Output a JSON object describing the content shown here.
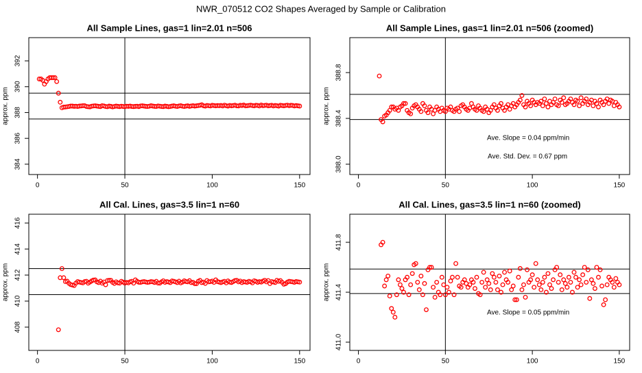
{
  "title": "NWR_070512  CO2 Shapes Averaged by Sample or Calibration",
  "chart_data": [
    {
      "type": "scatter",
      "title": "All Sample Lines, gas=1 lin=2.01 n=506",
      "ylabel": "approx. ppm",
      "color": "#ff0000",
      "xlim": [
        -4.96,
        155.96
      ],
      "xticks": [
        0,
        50,
        100,
        150
      ],
      "ylim": [
        383.2,
        393.8
      ],
      "yticks": [
        384,
        386,
        388,
        390,
        392
      ],
      "hlines": [
        389.5,
        387.5
      ],
      "vline": 50,
      "annotations": [],
      "x": [
        1,
        2,
        3,
        4,
        5,
        6,
        7,
        8,
        9,
        10,
        11,
        12,
        13,
        14,
        15,
        16,
        17,
        18,
        19,
        20,
        21,
        22,
        23,
        24,
        25,
        26,
        27,
        28,
        29,
        30,
        31,
        32,
        33,
        34,
        35,
        36,
        37,
        38,
        39,
        40,
        41,
        42,
        43,
        44,
        45,
        46,
        47,
        48,
        49,
        50,
        51,
        52,
        53,
        54,
        55,
        56,
        57,
        58,
        59,
        60,
        61,
        62,
        63,
        64,
        65,
        66,
        67,
        68,
        69,
        70,
        71,
        72,
        73,
        74,
        75,
        76,
        77,
        78,
        79,
        80,
        81,
        82,
        83,
        84,
        85,
        86,
        87,
        88,
        89,
        90,
        91,
        92,
        93,
        94,
        95,
        96,
        97,
        98,
        99,
        100,
        101,
        102,
        103,
        104,
        105,
        106,
        107,
        108,
        109,
        110,
        111,
        112,
        113,
        114,
        115,
        116,
        117,
        118,
        119,
        120,
        121,
        122,
        123,
        124,
        125,
        126,
        127,
        128,
        129,
        130,
        131,
        132,
        133,
        134,
        135,
        136,
        137,
        138,
        139,
        140,
        141,
        142,
        143,
        144,
        145,
        146,
        147,
        148,
        149,
        150
      ],
      "values": [
        390.6,
        390.6,
        390.5,
        390.2,
        390.4,
        390.6,
        390.7,
        390.7,
        390.7,
        390.7,
        390.4,
        389.5,
        388.8,
        388.37,
        388.42,
        388.43,
        388.45,
        388.47,
        388.5,
        388.5,
        388.48,
        388.49,
        388.47,
        388.5,
        388.51,
        388.53,
        388.53,
        388.47,
        388.45,
        388.44,
        388.49,
        388.51,
        388.52,
        388.5,
        388.48,
        388.46,
        388.53,
        388.51,
        388.47,
        388.45,
        388.5,
        388.48,
        388.44,
        388.47,
        388.5,
        388.48,
        388.46,
        388.49,
        388.47,
        388.46,
        388.49,
        388.48,
        388.5,
        388.47,
        388.46,
        388.48,
        388.49,
        388.46,
        388.51,
        388.52,
        388.5,
        388.48,
        388.47,
        388.49,
        388.53,
        388.5,
        388.48,
        388.47,
        388.51,
        388.49,
        388.47,
        388.46,
        388.5,
        388.48,
        388.45,
        388.47,
        388.5,
        388.52,
        388.49,
        388.47,
        388.51,
        388.53,
        388.49,
        388.47,
        388.5,
        388.52,
        388.48,
        388.51,
        388.53,
        388.5,
        388.52,
        388.54,
        388.56,
        388.6,
        388.52,
        388.5,
        388.55,
        388.53,
        388.51,
        388.56,
        388.54,
        388.52,
        388.54,
        388.53,
        388.55,
        388.51,
        388.57,
        388.53,
        388.5,
        388.55,
        388.52,
        388.54,
        388.57,
        388.52,
        388.51,
        388.56,
        388.54,
        388.58,
        388.52,
        388.53,
        388.55,
        388.57,
        388.54,
        388.52,
        388.56,
        388.55,
        388.51,
        388.58,
        388.53,
        388.55,
        388.57,
        388.52,
        388.54,
        388.56,
        388.51,
        388.55,
        388.53,
        388.5,
        388.56,
        388.54,
        388.52,
        388.55,
        388.57,
        388.53,
        388.56,
        388.55,
        388.51,
        388.54,
        388.52,
        388.5
      ]
    },
    {
      "type": "scatter",
      "title": "All Sample Lines, gas=1 lin=2.01 n=506 (zoomed)",
      "ylabel": "approx. ppm",
      "color": "#ff0000",
      "xlim": [
        -4.96,
        155.96
      ],
      "xticks": [
        0,
        50,
        100,
        150
      ],
      "ylim": [
        387.91,
        389.105
      ],
      "yticks": [
        {
          "value": 388,
          "label": "388.0"
        },
        388.4,
        388.8
      ],
      "hlines": [
        388.61,
        388.39
      ],
      "vline": 50,
      "annotations": [
        "Ave. Slope =  0.04  ppm/min",
        "Ave. Std. Dev. =  0.67  ppm"
      ],
      "x": [
        12,
        13,
        14,
        15,
        16,
        17,
        18,
        19,
        20,
        21,
        22,
        23,
        24,
        25,
        26,
        27,
        28,
        29,
        30,
        31,
        32,
        33,
        34,
        35,
        36,
        37,
        38,
        39,
        40,
        41,
        42,
        43,
        44,
        45,
        46,
        47,
        48,
        49,
        50,
        51,
        52,
        53,
        54,
        55,
        56,
        57,
        58,
        59,
        60,
        61,
        62,
        63,
        64,
        65,
        66,
        67,
        68,
        69,
        70,
        71,
        72,
        73,
        74,
        75,
        76,
        77,
        78,
        79,
        80,
        81,
        82,
        83,
        84,
        85,
        86,
        87,
        88,
        89,
        90,
        91,
        92,
        93,
        94,
        95,
        96,
        97,
        98,
        99,
        100,
        101,
        102,
        103,
        104,
        105,
        106,
        107,
        108,
        109,
        110,
        111,
        112,
        113,
        114,
        115,
        116,
        117,
        118,
        119,
        120,
        121,
        122,
        123,
        124,
        125,
        126,
        127,
        128,
        129,
        130,
        131,
        132,
        133,
        134,
        135,
        136,
        137,
        138,
        139,
        140,
        141,
        142,
        143,
        144,
        145,
        146,
        147,
        148,
        149,
        150
      ],
      "values": [
        388.77,
        388.39,
        388.37,
        388.42,
        388.43,
        388.45,
        388.47,
        388.5,
        388.5,
        388.48,
        388.49,
        388.47,
        388.5,
        388.51,
        388.53,
        388.53,
        388.47,
        388.45,
        388.44,
        388.49,
        388.51,
        388.52,
        388.5,
        388.48,
        388.46,
        388.53,
        388.51,
        388.47,
        388.45,
        388.5,
        388.48,
        388.44,
        388.47,
        388.5,
        388.48,
        388.46,
        388.49,
        388.47,
        388.46,
        388.49,
        388.48,
        388.5,
        388.47,
        388.46,
        388.48,
        388.49,
        388.46,
        388.51,
        388.52,
        388.5,
        388.48,
        388.47,
        388.49,
        388.53,
        388.5,
        388.48,
        388.47,
        388.51,
        388.49,
        388.47,
        388.46,
        388.5,
        388.48,
        388.45,
        388.47,
        388.5,
        388.52,
        388.49,
        388.47,
        388.51,
        388.53,
        388.49,
        388.47,
        388.5,
        388.52,
        388.48,
        388.51,
        388.53,
        388.5,
        388.52,
        388.54,
        388.56,
        388.6,
        388.52,
        388.5,
        388.55,
        388.53,
        388.51,
        388.56,
        388.54,
        388.52,
        388.54,
        388.53,
        388.55,
        388.51,
        388.57,
        388.53,
        388.5,
        388.55,
        388.52,
        388.54,
        388.57,
        388.52,
        388.51,
        388.56,
        388.54,
        388.58,
        388.52,
        388.53,
        388.55,
        388.57,
        388.54,
        388.52,
        388.56,
        388.55,
        388.51,
        388.58,
        388.53,
        388.55,
        388.57,
        388.52,
        388.54,
        388.56,
        388.51,
        388.55,
        388.53,
        388.5,
        388.56,
        388.54,
        388.52,
        388.55,
        388.57,
        388.53,
        388.56,
        388.55,
        388.51,
        388.54,
        388.52,
        388.5
      ]
    },
    {
      "type": "scatter",
      "title": "All Cal. Lines, gas=3.5 lin=1 n=60",
      "ylabel": "approx. ppm",
      "color": "#ff0000",
      "xlim": [
        -4.96,
        155.96
      ],
      "xticks": [
        0,
        50,
        100,
        150
      ],
      "ylim": [
        406.21,
        416.68
      ],
      "yticks": [
        408,
        410,
        412,
        414,
        416
      ],
      "hlines": [
        412.5,
        410.5
      ],
      "vline": 50,
      "annotations": [],
      "x": [
        12,
        13,
        14,
        15,
        16,
        17,
        18,
        19,
        20,
        21,
        22,
        23,
        24,
        25,
        26,
        27,
        28,
        29,
        30,
        31,
        32,
        33,
        34,
        35,
        36,
        37,
        38,
        39,
        40,
        41,
        42,
        43,
        44,
        45,
        46,
        47,
        48,
        49,
        50,
        51,
        52,
        53,
        54,
        55,
        56,
        57,
        58,
        59,
        60,
        61,
        62,
        63,
        64,
        65,
        66,
        67,
        68,
        69,
        70,
        71,
        72,
        73,
        74,
        75,
        76,
        77,
        78,
        79,
        80,
        81,
        82,
        83,
        84,
        85,
        86,
        87,
        88,
        89,
        90,
        91,
        92,
        93,
        94,
        95,
        96,
        97,
        98,
        99,
        100,
        101,
        102,
        103,
        104,
        105,
        106,
        107,
        108,
        109,
        110,
        111,
        112,
        113,
        114,
        115,
        116,
        117,
        118,
        119,
        120,
        121,
        122,
        123,
        124,
        125,
        126,
        127,
        128,
        129,
        130,
        131,
        132,
        133,
        134,
        135,
        136,
        137,
        138,
        139,
        140,
        141,
        142,
        143,
        144,
        145,
        146,
        147,
        148,
        149,
        150
      ],
      "values": [
        407.8,
        411.8,
        412.5,
        411.8,
        411.5,
        411.53,
        411.37,
        411.27,
        411.24,
        411.2,
        411.38,
        411.5,
        411.46,
        411.43,
        411.4,
        411.5,
        411.52,
        411.38,
        411.46,
        411.55,
        411.62,
        411.63,
        411.48,
        411.42,
        411.53,
        411.38,
        411.47,
        411.26,
        411.58,
        411.6,
        411.6,
        411.44,
        411.36,
        411.48,
        411.4,
        411.38,
        411.52,
        411.46,
        411.38,
        411.44,
        411.4,
        411.49,
        411.52,
        411.38,
        411.63,
        411.52,
        411.45,
        411.44,
        411.48,
        411.5,
        411.47,
        411.44,
        411.46,
        411.5,
        411.48,
        411.43,
        411.52,
        411.39,
        411.38,
        411.48,
        411.56,
        411.44,
        411.5,
        411.47,
        411.42,
        411.55,
        411.52,
        411.48,
        411.42,
        411.53,
        411.4,
        411.46,
        411.56,
        411.5,
        411.48,
        411.57,
        411.42,
        411.45,
        411.34,
        411.34,
        411.52,
        411.59,
        411.42,
        411.46,
        411.36,
        411.58,
        411.48,
        411.5,
        411.54,
        411.44,
        411.63,
        411.5,
        411.46,
        411.42,
        411.48,
        411.52,
        411.4,
        411.55,
        411.46,
        411.43,
        411.5,
        411.58,
        411.6,
        411.48,
        411.54,
        411.42,
        411.5,
        411.47,
        411.44,
        411.52,
        411.48,
        411.4,
        411.56,
        411.52,
        411.44,
        411.5,
        411.46,
        411.54,
        411.6,
        411.48,
        411.58,
        411.35,
        411.5,
        411.47,
        411.43,
        411.6,
        411.52,
        411.58,
        411.45,
        411.3,
        411.34,
        411.46,
        411.52,
        411.5,
        411.48,
        411.44,
        411.51,
        411.48,
        411.46
      ]
    },
    {
      "type": "scatter",
      "title": "All Cal. Lines, gas=3.5 lin=1 n=60 (zoomed)",
      "ylabel": "approx. ppm",
      "color": "#ff0000",
      "xlim": [
        -4.96,
        155.96
      ],
      "xticks": [
        0,
        50,
        100,
        150
      ],
      "ylim": [
        410.934,
        412.025
      ],
      "yticks": [
        {
          "value": 411,
          "label": "411.0"
        },
        411.4,
        411.8
      ],
      "hlines": [
        411.586,
        411.39
      ],
      "vline": 50,
      "annotations": [
        "Ave. Slope =  0.05  ppm/min"
      ],
      "x": [
        13,
        14,
        15,
        16,
        17,
        18,
        19,
        20,
        21,
        22,
        23,
        24,
        25,
        26,
        27,
        28,
        29,
        30,
        31,
        32,
        33,
        34,
        35,
        36,
        37,
        38,
        39,
        40,
        41,
        42,
        43,
        44,
        45,
        46,
        47,
        48,
        49,
        50,
        51,
        52,
        53,
        54,
        55,
        56,
        57,
        58,
        59,
        60,
        61,
        62,
        63,
        64,
        65,
        66,
        67,
        68,
        69,
        70,
        71,
        72,
        73,
        74,
        75,
        76,
        77,
        78,
        79,
        80,
        81,
        82,
        83,
        84,
        85,
        86,
        87,
        88,
        89,
        90,
        91,
        92,
        93,
        94,
        95,
        96,
        97,
        98,
        99,
        100,
        101,
        102,
        103,
        104,
        105,
        106,
        107,
        108,
        109,
        110,
        111,
        112,
        113,
        114,
        115,
        116,
        117,
        118,
        119,
        120,
        121,
        122,
        123,
        124,
        125,
        126,
        127,
        128,
        129,
        130,
        131,
        132,
        133,
        134,
        135,
        136,
        137,
        138,
        139,
        140,
        141,
        142,
        143,
        144,
        145,
        146,
        147,
        148,
        149,
        150
      ],
      "values": [
        411.78,
        411.8,
        411.45,
        411.5,
        411.53,
        411.37,
        411.27,
        411.24,
        411.2,
        411.38,
        411.5,
        411.46,
        411.43,
        411.4,
        411.5,
        411.52,
        411.38,
        411.46,
        411.55,
        411.62,
        411.63,
        411.48,
        411.42,
        411.53,
        411.38,
        411.47,
        411.26,
        411.58,
        411.6,
        411.6,
        411.44,
        411.36,
        411.48,
        411.4,
        411.38,
        411.52,
        411.46,
        411.38,
        411.44,
        411.4,
        411.49,
        411.52,
        411.38,
        411.63,
        411.52,
        411.45,
        411.44,
        411.48,
        411.5,
        411.47,
        411.44,
        411.46,
        411.5,
        411.48,
        411.43,
        411.52,
        411.39,
        411.38,
        411.48,
        411.56,
        411.44,
        411.5,
        411.47,
        411.42,
        411.55,
        411.52,
        411.48,
        411.42,
        411.53,
        411.4,
        411.46,
        411.56,
        411.5,
        411.48,
        411.57,
        411.42,
        411.45,
        411.34,
        411.34,
        411.52,
        411.59,
        411.42,
        411.46,
        411.36,
        411.58,
        411.48,
        411.5,
        411.54,
        411.44,
        411.63,
        411.5,
        411.46,
        411.42,
        411.48,
        411.52,
        411.4,
        411.55,
        411.46,
        411.43,
        411.5,
        411.58,
        411.6,
        411.48,
        411.54,
        411.42,
        411.5,
        411.47,
        411.44,
        411.52,
        411.48,
        411.4,
        411.56,
        411.52,
        411.44,
        411.5,
        411.46,
        411.54,
        411.6,
        411.48,
        411.58,
        411.35,
        411.5,
        411.47,
        411.43,
        411.6,
        411.52,
        411.58,
        411.45,
        411.3,
        411.34,
        411.46,
        411.52,
        411.5,
        411.48,
        411.44,
        411.51,
        411.48,
        411.46
      ]
    }
  ]
}
